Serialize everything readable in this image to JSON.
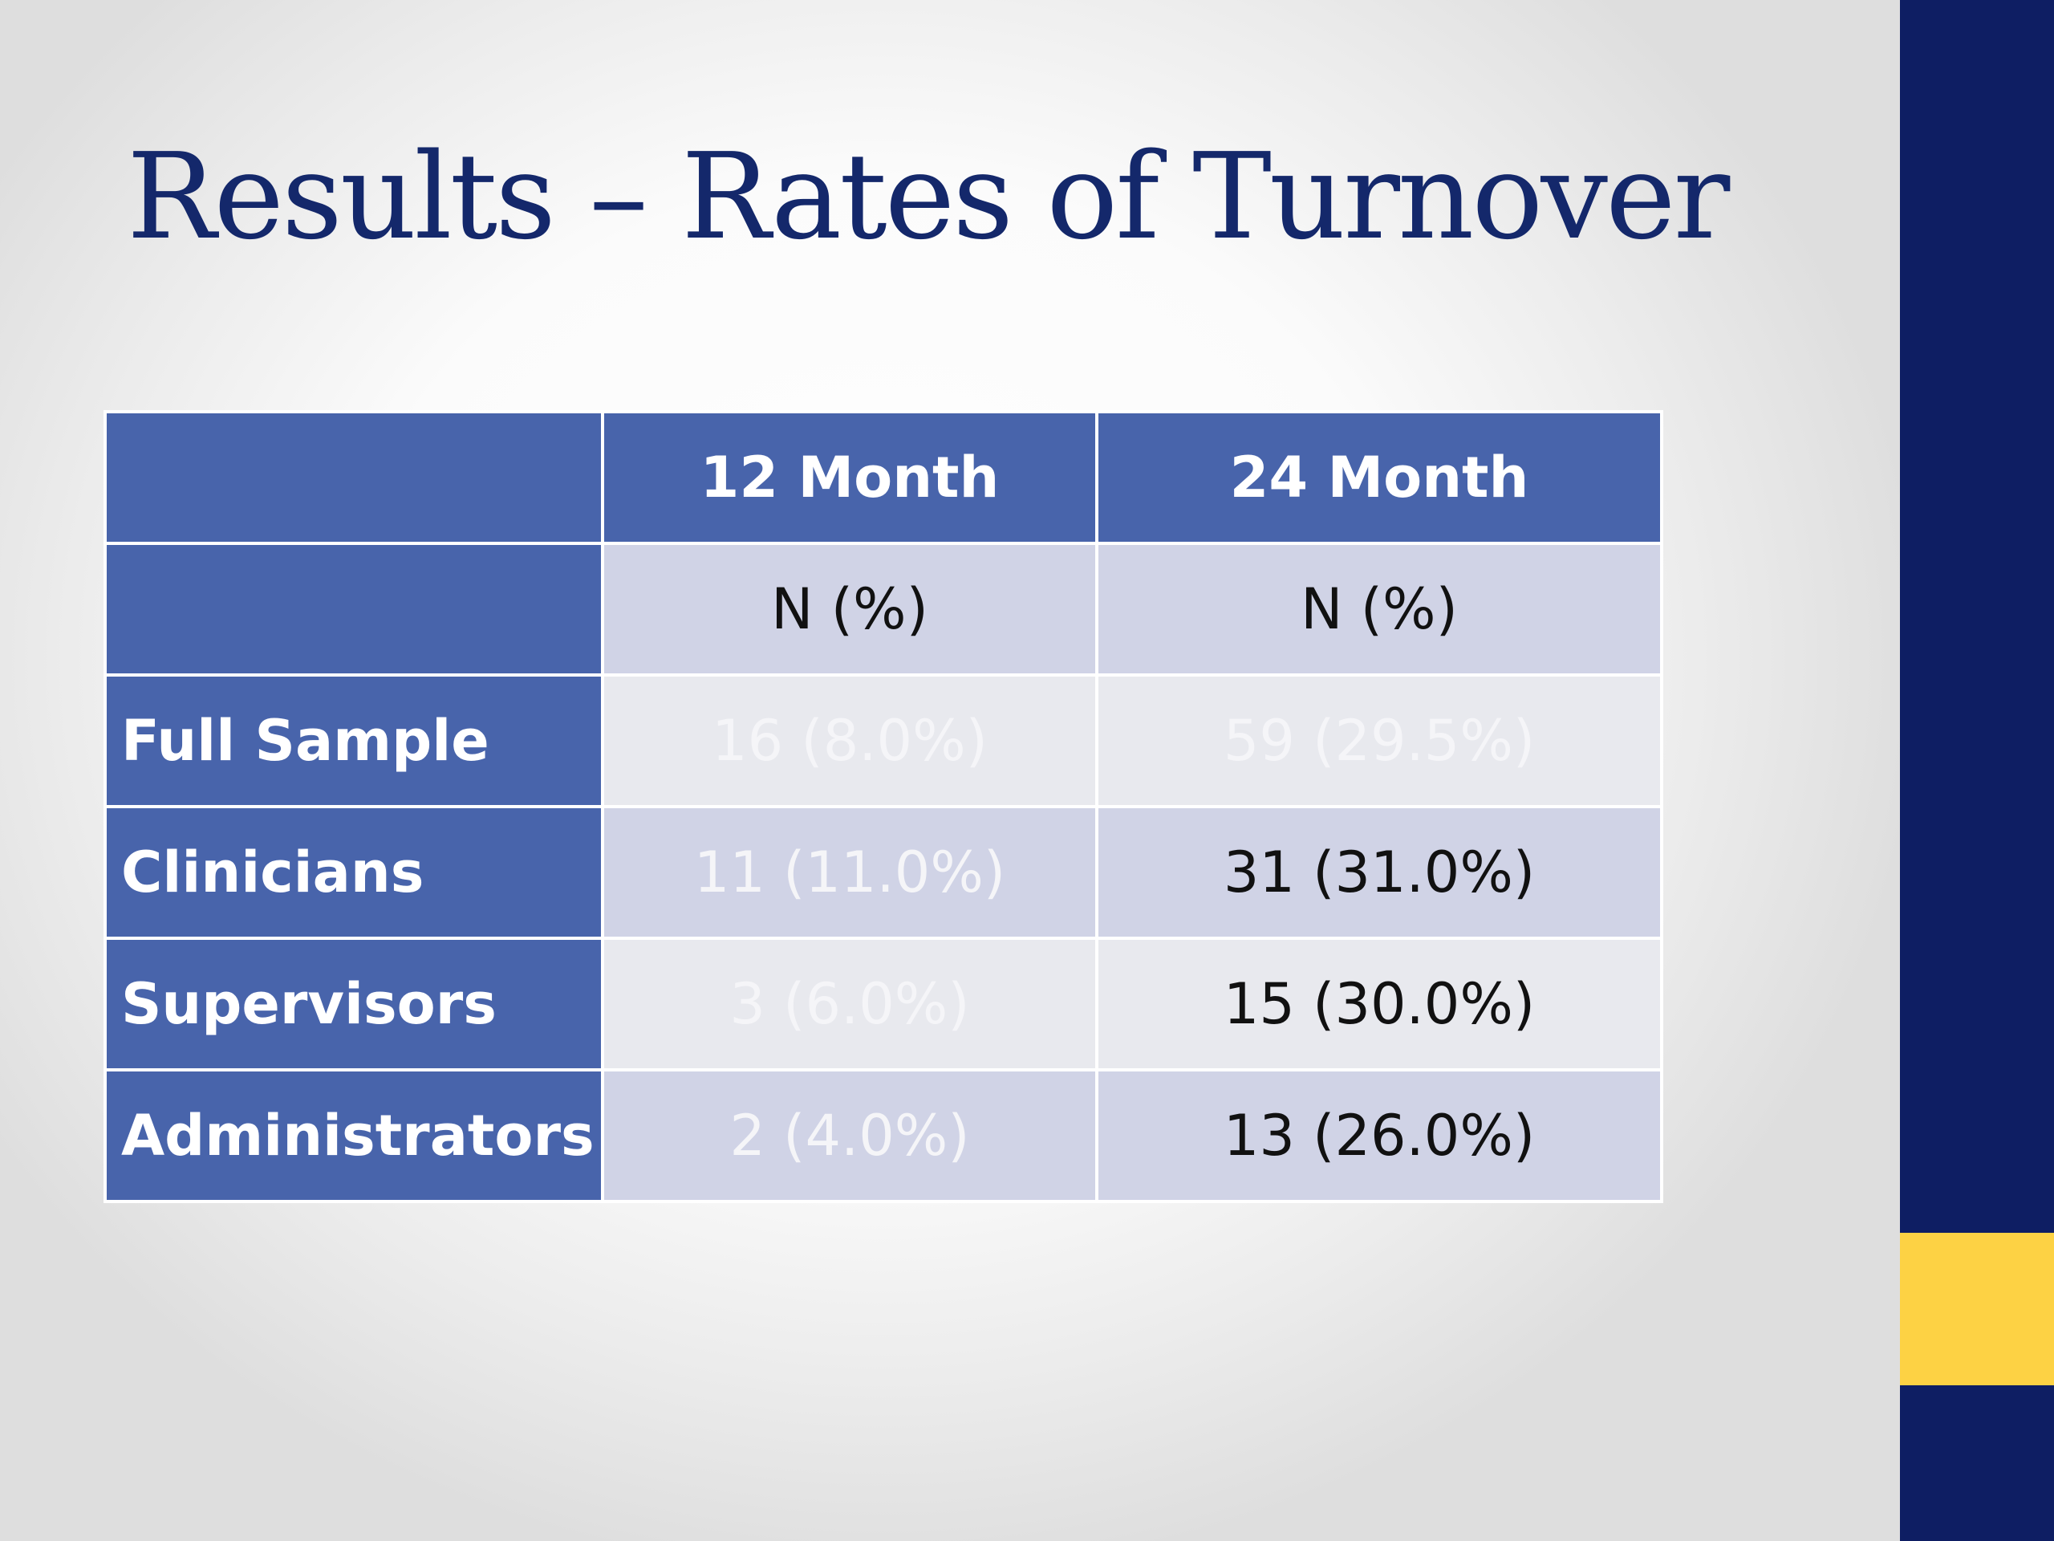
{
  "slide": {
    "title": "Results – Rates of Turnover"
  },
  "colors": {
    "title": "#14286b",
    "side_bar": "#0e1e63",
    "side_bar_accent": "#fdd244",
    "table_header": "#4864ab",
    "row_band_dark": "#d0d3e6",
    "row_band_light": "#e8e9ee",
    "cell_text_dark": "#111111",
    "cell_text_faded": "#f5f5f8"
  },
  "table": {
    "header": {
      "blank": "",
      "col1": "12 Month",
      "col2": "24 Month"
    },
    "subheader": {
      "blank": "",
      "col1": "N (%)",
      "col2": "N (%)"
    },
    "rows": [
      {
        "label": "Full Sample",
        "m12": "16 (8.0%)",
        "m24": "59 (29.5%)"
      },
      {
        "label": "Clinicians",
        "m12": "11 (11.0%)",
        "m24": "31 (31.0%)"
      },
      {
        "label": "Supervisors",
        "m12": "3 (6.0%)",
        "m24": "15 (30.0%)"
      },
      {
        "label": "Administrators",
        "m12": "2 (4.0%)",
        "m24": "13 (26.0%)"
      }
    ]
  }
}
